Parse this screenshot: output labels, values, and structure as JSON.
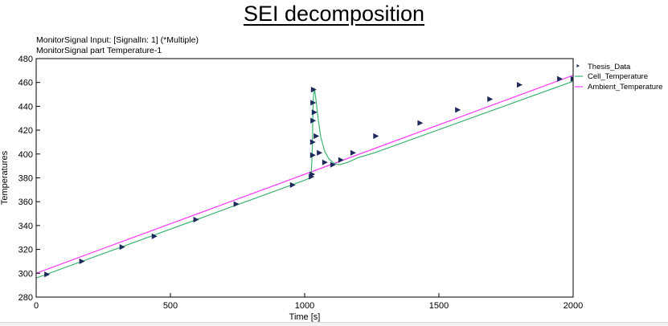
{
  "slide": {
    "title": "SEI decomposition",
    "subtitle_line1": "MonitorSignal Input: [SignalIn: 1] (*Multiple)",
    "subtitle_line2": "MonitorSignal part Temperature-1"
  },
  "colors": {
    "thesis": "#1f2a5c",
    "cell": "#3cb371",
    "ambient": "#ff3cff"
  },
  "chart_data": {
    "type": "line",
    "title": "",
    "xlabel": "Time [s]",
    "ylabel": "Temperatures",
    "xlim": [
      0,
      2000
    ],
    "ylim": [
      280,
      480
    ],
    "x_ticks": [
      0,
      500,
      1000,
      1500,
      2000
    ],
    "y_ticks": [
      280,
      300,
      320,
      340,
      360,
      380,
      400,
      420,
      440,
      460,
      480
    ],
    "grid": false,
    "legend_position": "right",
    "series": [
      {
        "name": "Thesis_Data",
        "style": "markers",
        "x": [
          40,
          170,
          320,
          440,
          595,
          745,
          955,
          1025,
          1028,
          1030,
          1030,
          1031,
          1031,
          1033,
          1036,
          1043,
          1055,
          1075,
          1105,
          1135,
          1180,
          1265,
          1430,
          1570,
          1690,
          1800,
          1950,
          2000
        ],
        "y": [
          299,
          310,
          322,
          331,
          345,
          358,
          374,
          381,
          383,
          399,
          410,
          428,
          443,
          454,
          435,
          415,
          401,
          393,
          391,
          395,
          401,
          415,
          426,
          437,
          446,
          458,
          463,
          463
        ]
      },
      {
        "name": "Cell_Temperature",
        "style": "line",
        "x": [
          0,
          1000,
          1020,
          1025,
          1028,
          1030,
          1032,
          1036,
          1042,
          1050,
          1060,
          1075,
          1090,
          1110,
          1130,
          1160,
          1200,
          1260,
          2000
        ],
        "y": [
          296,
          378,
          380,
          386,
          400,
          425,
          446,
          455,
          446,
          430,
          414,
          402,
          396,
          392,
          391,
          393,
          397,
          401,
          461
        ]
      },
      {
        "name": "Ambient_Temperature",
        "style": "line",
        "x": [
          0,
          2000
        ],
        "y": [
          300,
          466
        ]
      }
    ]
  }
}
